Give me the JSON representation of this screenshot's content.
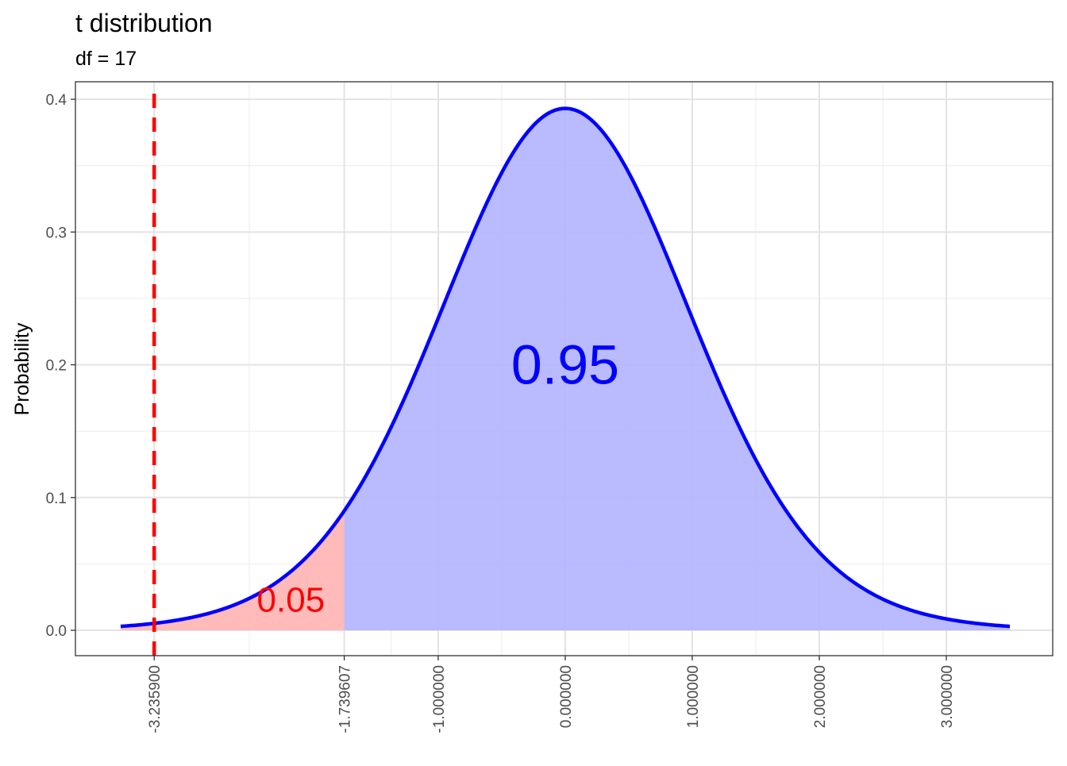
{
  "chart_data": {
    "type": "area",
    "title": "t distribution",
    "subtitle": "df = 17",
    "xlabel": "",
    "ylabel": "Probability",
    "df": 17,
    "x_range_curve": [
      -3.5,
      3.5
    ],
    "xlim": [
      -3.856,
      3.8375
    ],
    "ylim": [
      -0.0191,
      0.4132
    ],
    "x_ticks": [
      -3.2359,
      -1.739607,
      -1,
      0,
      1,
      2,
      3
    ],
    "x_tick_labels": [
      "-3.235900",
      "-1.739607",
      "-1.000000",
      "0.000000",
      "1.000000",
      "2.000000",
      "3.000000"
    ],
    "y_ticks": [
      0,
      0.1,
      0.2,
      0.3,
      0.4
    ],
    "y_tick_labels": [
      "0.0",
      "0.1",
      "0.2",
      "0.3",
      "0.4"
    ],
    "grid": true,
    "critical_value": -1.739607,
    "observed_line": -3.2359,
    "regions": [
      {
        "label": "0.05",
        "from": -3.5,
        "to": -1.739607,
        "fill": "#ffb3b3",
        "text_color": "#ff0000",
        "label_x": -2.16,
        "label_y": 0.014
      },
      {
        "label": "0.95",
        "from": -1.739607,
        "to": 3.5,
        "fill": "#b3b3ff",
        "text_color": "#0000ff",
        "label_x": 0,
        "label_y": 0.2
      }
    ],
    "curve_color": "#0000ff",
    "vline_color": "#ff0000"
  }
}
